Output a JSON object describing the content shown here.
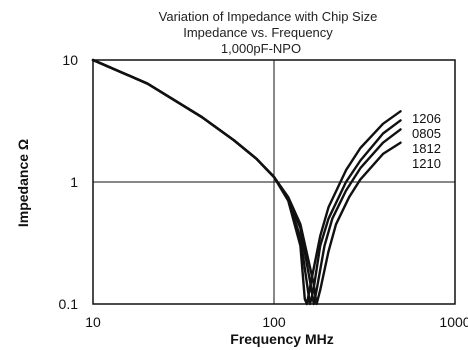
{
  "chart_data": {
    "type": "line",
    "title_lines": [
      "Variation of Impedance with Chip Size",
      "Impedance vs. Frequency",
      "1,000pF-NPO"
    ],
    "xlabel": "Frequency MHz",
    "ylabel": "Impedance Ω",
    "x_scale": "log",
    "y_scale": "log",
    "xlim": [
      10,
      1000
    ],
    "ylim": [
      0.1,
      10
    ],
    "x_ticks": [
      "10",
      "100",
      "1000"
    ],
    "y_ticks": [
      "0.1",
      "1",
      "10"
    ],
    "grid": true,
    "legend_labels": [
      "1206",
      "0805",
      "1812",
      "1210"
    ],
    "series": [
      {
        "name": "1206",
        "x": [
          10,
          20,
          40,
          60,
          80,
          100,
          120,
          140,
          148,
          152,
          160,
          180,
          200,
          250,
          300,
          400,
          500
        ],
        "y": [
          10,
          6.4,
          3.4,
          2.2,
          1.55,
          1.1,
          0.7,
          0.3,
          0.11,
          0.1,
          0.15,
          0.36,
          0.62,
          1.25,
          1.9,
          3.0,
          3.8
        ]
      },
      {
        "name": "0805",
        "x": [
          10,
          20,
          40,
          60,
          80,
          100,
          120,
          140,
          155,
          158,
          165,
          180,
          200,
          250,
          300,
          400,
          500
        ],
        "y": [
          10,
          6.4,
          3.4,
          2.2,
          1.55,
          1.1,
          0.72,
          0.35,
          0.12,
          0.1,
          0.13,
          0.3,
          0.5,
          1.0,
          1.5,
          2.5,
          3.2
        ]
      },
      {
        "name": "1812",
        "x": [
          10,
          20,
          40,
          60,
          80,
          100,
          120,
          140,
          160,
          166,
          172,
          190,
          210,
          250,
          300,
          400,
          500
        ],
        "y": [
          10,
          6.4,
          3.4,
          2.2,
          1.55,
          1.1,
          0.74,
          0.42,
          0.14,
          0.1,
          0.13,
          0.3,
          0.5,
          0.85,
          1.3,
          2.1,
          2.7
        ]
      },
      {
        "name": "1210",
        "x": [
          10,
          20,
          40,
          60,
          80,
          100,
          120,
          140,
          165,
          172,
          180,
          200,
          220,
          260,
          300,
          400,
          500
        ],
        "y": [
          10,
          6.4,
          3.4,
          2.2,
          1.55,
          1.1,
          0.75,
          0.45,
          0.15,
          0.1,
          0.13,
          0.27,
          0.45,
          0.75,
          1.05,
          1.7,
          2.1
        ]
      }
    ]
  }
}
